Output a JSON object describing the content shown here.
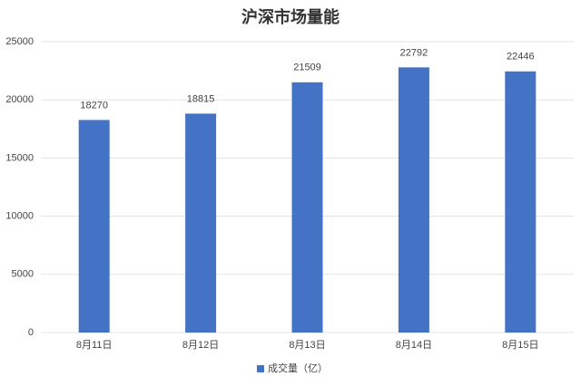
{
  "chart_data": {
    "type": "bar",
    "title": "沪深市场量能",
    "categories": [
      "8月11日",
      "8月12日",
      "8月13日",
      "8月14日",
      "8月15日"
    ],
    "series": [
      {
        "name": "成交量（亿）",
        "color": "#4472c4",
        "values": [
          18270,
          18815,
          21509,
          22792,
          22446
        ]
      }
    ],
    "ylim": [
      0,
      25000
    ],
    "yticks": [
      0,
      5000,
      10000,
      15000,
      20000,
      25000
    ],
    "grid": true,
    "legend": "bottom",
    "data_labels": true
  }
}
